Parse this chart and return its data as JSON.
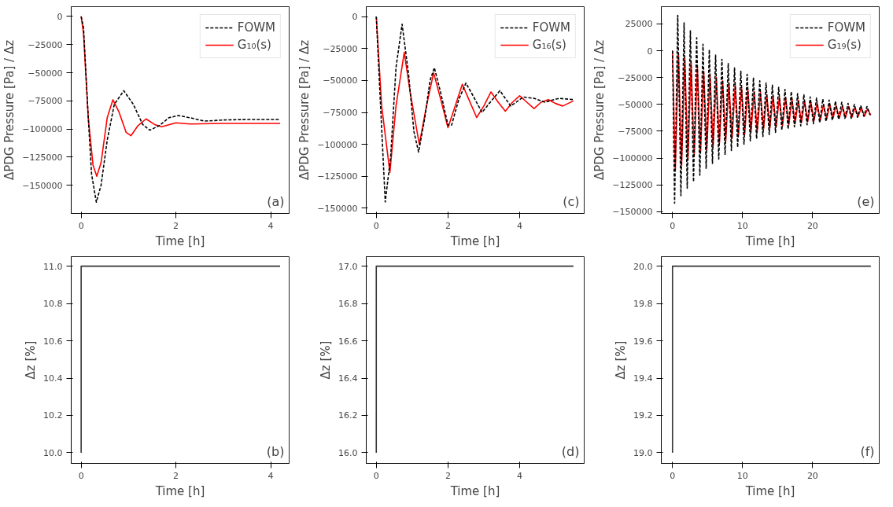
{
  "chart_data": [
    {
      "type": "line",
      "xlabel": "Time [h]",
      "ylabel": "ΔPDG Pressure [Pa] / Δz",
      "xlim": [
        -0.21,
        4.39
      ],
      "ylim": [
        -175000,
        8700
      ],
      "xticks": [
        0,
        2,
        4
      ],
      "yticks": [
        0,
        {
          "value": -25000,
          "label": "−25000"
        },
        {
          "value": -50000,
          "label": "−50000"
        },
        {
          "value": -75000,
          "label": "−75000"
        },
        {
          "value": -100000,
          "label": "−100000"
        },
        {
          "value": -125000,
          "label": "−125000"
        },
        {
          "value": -150000,
          "label": "−150000"
        }
      ],
      "legend": "top right",
      "annotations": [
        "(a)"
      ],
      "series": [
        {
          "name": "FOWM",
          "color": "#000000",
          "line_style": "dashed",
          "x": [
            0,
            0.05,
            0.15,
            0.22,
            0.32,
            0.42,
            0.55,
            0.7,
            0.9,
            1.1,
            1.3,
            1.45,
            1.65,
            1.85,
            2.05,
            2.3,
            2.6,
            3.0,
            3.5,
            4.2
          ],
          "values": [
            0,
            -10000,
            -90000,
            -140000,
            -165000,
            -150000,
            -110000,
            -78000,
            -66000,
            -78000,
            -96000,
            -101000,
            -97000,
            -90000,
            -88000,
            -90000,
            -93000,
            -92000,
            -91500,
            -91500
          ]
        },
        {
          "name": "G₁₀(s)",
          "color": "#ff0000",
          "line_style": "solid",
          "x": [
            0,
            0.05,
            0.15,
            0.25,
            0.33,
            0.42,
            0.55,
            0.67,
            0.8,
            0.95,
            1.05,
            1.2,
            1.37,
            1.55,
            1.7,
            2.0,
            2.3,
            3.0,
            4.2
          ],
          "values": [
            0,
            -15000,
            -90000,
            -132000,
            -142000,
            -130000,
            -90000,
            -74000,
            -85000,
            -103000,
            -106000,
            -97000,
            -91000,
            -96000,
            -98000,
            -94500,
            -95500,
            -95000,
            -95000
          ]
        }
      ]
    },
    {
      "type": "line",
      "xlabel": "Time [h]",
      "ylabel": "ΔPDG Pressure [Pa] / Δz",
      "xlim": [
        -0.28,
        5.8
      ],
      "ylim": [
        -154000,
        7700
      ],
      "xticks": [
        0,
        2,
        4
      ],
      "yticks": [
        0,
        {
          "value": -25000,
          "label": "−25000"
        },
        {
          "value": -50000,
          "label": "−50000"
        },
        {
          "value": -75000,
          "label": "−75000"
        },
        {
          "value": -100000,
          "label": "−100000"
        },
        {
          "value": -125000,
          "label": "−125000"
        },
        {
          "value": -150000,
          "label": "−150000"
        }
      ],
      "legend": "top right",
      "annotations": [
        "(c)"
      ],
      "series": [
        {
          "name": "FOWM",
          "color": "#000000",
          "line_style": "dashed",
          "x": [
            0,
            0.12,
            0.25,
            0.4,
            0.55,
            0.72,
            0.9,
            1.05,
            1.18,
            1.35,
            1.5,
            1.62,
            1.8,
            2.0,
            2.1,
            2.3,
            2.5,
            2.7,
            2.95,
            3.15,
            3.45,
            3.75,
            4.1,
            4.4,
            4.7,
            5.1,
            5.5
          ],
          "values": [
            0,
            -70000,
            -145000,
            -110000,
            -40000,
            -6000,
            -45000,
            -90000,
            -106000,
            -80000,
            -50000,
            -40000,
            -60000,
            -85000,
            -85000,
            -65000,
            -52000,
            -62000,
            -75000,
            -68000,
            -58000,
            -70000,
            -63000,
            -64000,
            -67000,
            -64000,
            -65000
          ]
        },
        {
          "name": "G₁₆(s)",
          "color": "#ff0000",
          "line_style": "solid",
          "x": [
            0,
            0.15,
            0.38,
            0.55,
            0.78,
            0.95,
            1.2,
            1.4,
            1.6,
            1.8,
            2.0,
            2.2,
            2.4,
            2.6,
            2.8,
            3.0,
            3.2,
            3.4,
            3.6,
            3.8,
            4.0,
            4.2,
            4.4,
            4.6,
            4.8,
            5.0,
            5.2,
            5.5
          ],
          "values": [
            0,
            -70000,
            -122000,
            -70000,
            -28000,
            -60000,
            -100000,
            -70000,
            -44000,
            -65000,
            -87000,
            -70000,
            -53000,
            -66000,
            -79000,
            -70000,
            -59000,
            -67000,
            -74000,
            -67000,
            -62000,
            -67000,
            -72000,
            -67000,
            -65000,
            -68000,
            -70000,
            -66000
          ]
        }
      ]
    },
    {
      "type": "line",
      "xlabel": "Time [h]",
      "ylabel": "ΔPDG Pressure [Pa] / Δz",
      "xlim": [
        -1.6,
        29.5
      ],
      "ylim": [
        -151500,
        41000
      ],
      "xticks": [
        0,
        10,
        20
      ],
      "yticks": [
        25000,
        0,
        {
          "value": -25000,
          "label": "−25000"
        },
        {
          "value": -50000,
          "label": "−50000"
        },
        {
          "value": -75000,
          "label": "−75000"
        },
        {
          "value": -100000,
          "label": "−100000"
        },
        {
          "value": -125000,
          "label": "−125000"
        },
        {
          "value": -150000,
          "label": "−150000"
        }
      ],
      "legend": "top right",
      "annotations": [
        "(e)"
      ],
      "series": [
        {
          "name": "FOWM",
          "color": "#000000",
          "line_style": "dashed",
          "x": [
            0,
            0.3,
            0.75,
            1.2,
            1.65,
            2.1,
            2.55,
            3.0,
            3.45,
            3.9,
            4.35,
            4.8,
            5.25,
            5.7,
            6.15,
            6.6,
            7.05,
            7.5,
            7.95,
            8.4,
            8.85,
            9.3,
            9.75,
            10.2,
            10.65,
            11.1,
            11.55,
            12.0,
            12.45,
            12.9,
            13.35,
            13.8,
            14.25,
            14.7,
            15.15,
            15.6,
            16.05,
            16.5,
            16.95,
            17.4,
            17.85,
            18.3,
            18.75,
            19.2,
            19.65,
            20.1,
            20.55,
            21.0,
            21.45,
            21.9,
            22.35,
            22.8,
            23.25,
            23.7,
            24.15,
            24.6,
            25.05,
            25.5,
            25.95,
            26.4,
            26.85,
            27.3,
            27.75,
            28.2
          ],
          "values": [
            0,
            -142000,
            33000,
            -135000,
            26000,
            -128000,
            19000,
            -122000,
            12000,
            -116000,
            6000,
            -110000,
            1000,
            -105000,
            -4000,
            -101000,
            -8000,
            -97000,
            -12000,
            -93000,
            -16000,
            -90000,
            -19000,
            -87000,
            -22000,
            -84000,
            -25000,
            -82000,
            -28000,
            -80000,
            -30000,
            -78000,
            -32000,
            -76000,
            -34000,
            -74000,
            -36000,
            -73000,
            -38000,
            -71000,
            -40000,
            -70000,
            -41000,
            -69000,
            -43000,
            -68000,
            -44000,
            -67000,
            -45000,
            -66000,
            -46000,
            -65000,
            -47000,
            -64000,
            -48000,
            -63000,
            -49000,
            -63000,
            -50000,
            -62000,
            -51000,
            -61000,
            -52000,
            -60000
          ]
        },
        {
          "name": "G₁₉(s)",
          "color": "#ff0000",
          "line_style": "solid",
          "x": [
            0,
            0.4,
            0.85,
            1.3,
            1.75,
            2.2,
            2.65,
            3.1,
            3.55,
            4.0,
            4.45,
            4.9,
            5.35,
            5.8,
            6.25,
            6.7,
            7.15,
            7.6,
            8.05,
            8.5,
            8.95,
            9.4,
            9.85,
            10.3,
            10.75,
            11.2,
            11.65,
            12.1,
            12.55,
            13.0,
            13.45,
            13.9,
            14.35,
            14.8,
            15.25,
            15.7,
            16.15,
            16.6,
            17.05,
            17.5,
            17.95,
            18.4,
            18.85,
            19.3,
            19.75,
            20.2,
            20.65,
            21.1,
            21.55,
            22.0,
            22.45,
            22.9,
            23.35,
            23.8,
            24.25,
            24.7,
            25.15,
            25.6,
            26.05,
            26.5,
            26.95,
            27.4,
            27.85,
            28.3
          ],
          "values": [
            0,
            -112000,
            -3000,
            -107000,
            -7000,
            -102000,
            -11000,
            -98000,
            -15000,
            -95000,
            -19000,
            -92000,
            -22000,
            -89000,
            -25000,
            -86000,
            -28000,
            -84000,
            -30000,
            -82000,
            -32000,
            -80000,
            -34000,
            -78000,
            -36000,
            -76000,
            -38000,
            -75000,
            -39000,
            -73000,
            -41000,
            -72000,
            -42000,
            -71000,
            -43000,
            -70000,
            -44000,
            -69000,
            -45000,
            -68000,
            -46000,
            -67000,
            -47000,
            -66000,
            -48000,
            -65000,
            -49000,
            -65000,
            -50000,
            -64000,
            -50000,
            -63000,
            -51000,
            -63000,
            -52000,
            -62000,
            -52000,
            -62000,
            -53000,
            -61000,
            -53000,
            -61000,
            -54000,
            -60000
          ]
        }
      ]
    },
    {
      "type": "step",
      "xlabel": "Time [h]",
      "ylabel": "Δz [%]",
      "xlim": [
        -0.21,
        4.39
      ],
      "ylim": [
        9.943,
        11.051
      ],
      "xticks": [
        0,
        2,
        4
      ],
      "yticks": [
        {
          "value": 10,
          "label": "10.0"
        },
        {
          "value": 10.2,
          "label": "10.2"
        },
        {
          "value": 10.4,
          "label": "10.4"
        },
        {
          "value": 10.6,
          "label": "10.6"
        },
        {
          "value": 10.8,
          "label": "10.8"
        },
        {
          "value": 11,
          "label": "11.0"
        }
      ],
      "annotations": [
        "(b)"
      ],
      "series": [
        {
          "color": "#333333",
          "x": [
            0,
            4.2
          ],
          "values": [
            10,
            11
          ]
        }
      ]
    },
    {
      "type": "step",
      "xlabel": "Time [h]",
      "ylabel": "Δz [%]",
      "xlim": [
        -0.28,
        5.8
      ],
      "ylim": [
        15.943,
        17.051
      ],
      "xticks": [
        0,
        2,
        4
      ],
      "yticks": [
        {
          "value": 16,
          "label": "16.0"
        },
        {
          "value": 16.2,
          "label": "16.2"
        },
        {
          "value": 16.4,
          "label": "16.4"
        },
        {
          "value": 16.6,
          "label": "16.6"
        },
        {
          "value": 16.8,
          "label": "16.8"
        },
        {
          "value": 17,
          "label": "17.0"
        }
      ],
      "annotations": [
        "(d)"
      ],
      "series": [
        {
          "color": "#333333",
          "x": [
            0,
            5.5
          ],
          "values": [
            16,
            17
          ]
        }
      ]
    },
    {
      "type": "step",
      "xlabel": "Time [h]",
      "ylabel": "Δz [%]",
      "xlim": [
        -1.6,
        29.5
      ],
      "ylim": [
        18.943,
        20.051
      ],
      "xticks": [
        0,
        10,
        20
      ],
      "yticks": [
        {
          "value": 19,
          "label": "19.0"
        },
        {
          "value": 19.2,
          "label": "19.2"
        },
        {
          "value": 19.4,
          "label": "19.4"
        },
        {
          "value": 19.6,
          "label": "19.6"
        },
        {
          "value": 19.8,
          "label": "19.8"
        },
        {
          "value": 20,
          "label": "20.0"
        }
      ],
      "annotations": [
        "(f)"
      ],
      "series": [
        {
          "color": "#333333",
          "x": [
            0,
            28.3
          ],
          "values": [
            19,
            20
          ]
        }
      ]
    }
  ]
}
